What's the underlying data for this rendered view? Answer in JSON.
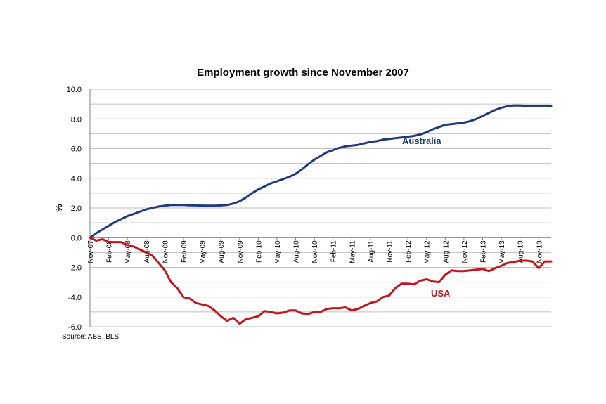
{
  "chart_data": {
    "type": "line",
    "title": "Employment growth since November 2007",
    "ylabel": "%",
    "xlabel": "",
    "source": "Source: ABS, BLS",
    "ylim": [
      -6.0,
      10.0
    ],
    "y_ticks": [
      "10.0",
      "8.0",
      "6.0",
      "4.0",
      "2.0",
      "0.0",
      "-2.0",
      "-4.0",
      "-6.0"
    ],
    "x_ticks": [
      "Nov-07",
      "Feb-08",
      "May-08",
      "Aug-08",
      "Nov-08",
      "Feb-09",
      "May-09",
      "Aug-09",
      "Nov-09",
      "Feb-10",
      "May-10",
      "Aug-10",
      "Nov-10",
      "Feb-11",
      "May-11",
      "Aug-11",
      "Nov-11",
      "Feb-12",
      "May-12",
      "Aug-12",
      "Nov-12",
      "Feb-13",
      "May-13",
      "Aug-13",
      "Nov-13"
    ],
    "grid": true,
    "legend": "inline labels",
    "series": [
      {
        "name": "Australia",
        "color": "#1f3b7a",
        "values": [
          0.0,
          0.3,
          0.55,
          0.8,
          1.05,
          1.25,
          1.45,
          1.6,
          1.75,
          1.9,
          2.0,
          2.1,
          2.15,
          2.2,
          2.2,
          2.2,
          2.18,
          2.17,
          2.16,
          2.15,
          2.15,
          2.17,
          2.2,
          2.3,
          2.45,
          2.7,
          3.0,
          3.25,
          3.45,
          3.65,
          3.8,
          3.95,
          4.1,
          4.3,
          4.6,
          4.95,
          5.25,
          5.5,
          5.75,
          5.9,
          6.05,
          6.15,
          6.2,
          6.25,
          6.35,
          6.45,
          6.5,
          6.6,
          6.65,
          6.7,
          6.75,
          6.8,
          6.85,
          6.95,
          7.1,
          7.3,
          7.45,
          7.6,
          7.65,
          7.7,
          7.75,
          7.85,
          8.0,
          8.2,
          8.4,
          8.6,
          8.75,
          8.85,
          8.9,
          8.9,
          8.88,
          8.87,
          8.86,
          8.85,
          8.85
        ]
      },
      {
        "name": "USA",
        "color": "#c0161c",
        "values": [
          0.0,
          -0.2,
          -0.1,
          -0.3,
          -0.3,
          -0.3,
          -0.5,
          -0.6,
          -0.8,
          -1.0,
          -1.2,
          -1.7,
          -2.2,
          -3.0,
          -3.4,
          -4.0,
          -4.1,
          -4.4,
          -4.5,
          -4.6,
          -4.9,
          -5.3,
          -5.6,
          -5.4,
          -5.8,
          -5.5,
          -5.4,
          -5.3,
          -4.95,
          -5.0,
          -5.1,
          -5.05,
          -4.9,
          -4.9,
          -5.1,
          -5.15,
          -5.0,
          -5.0,
          -4.8,
          -4.75,
          -4.75,
          -4.7,
          -4.9,
          -4.8,
          -4.6,
          -4.4,
          -4.3,
          -4.0,
          -3.9,
          -3.4,
          -3.1,
          -3.1,
          -3.15,
          -2.9,
          -2.8,
          -2.95,
          -3.0,
          -2.5,
          -2.2,
          -2.25,
          -2.25,
          -2.2,
          -2.15,
          -2.1,
          -2.25,
          -2.05,
          -1.9,
          -1.7,
          -1.65,
          -1.55,
          -1.55,
          -1.6,
          -2.05,
          -1.6,
          -1.6
        ]
      }
    ]
  }
}
